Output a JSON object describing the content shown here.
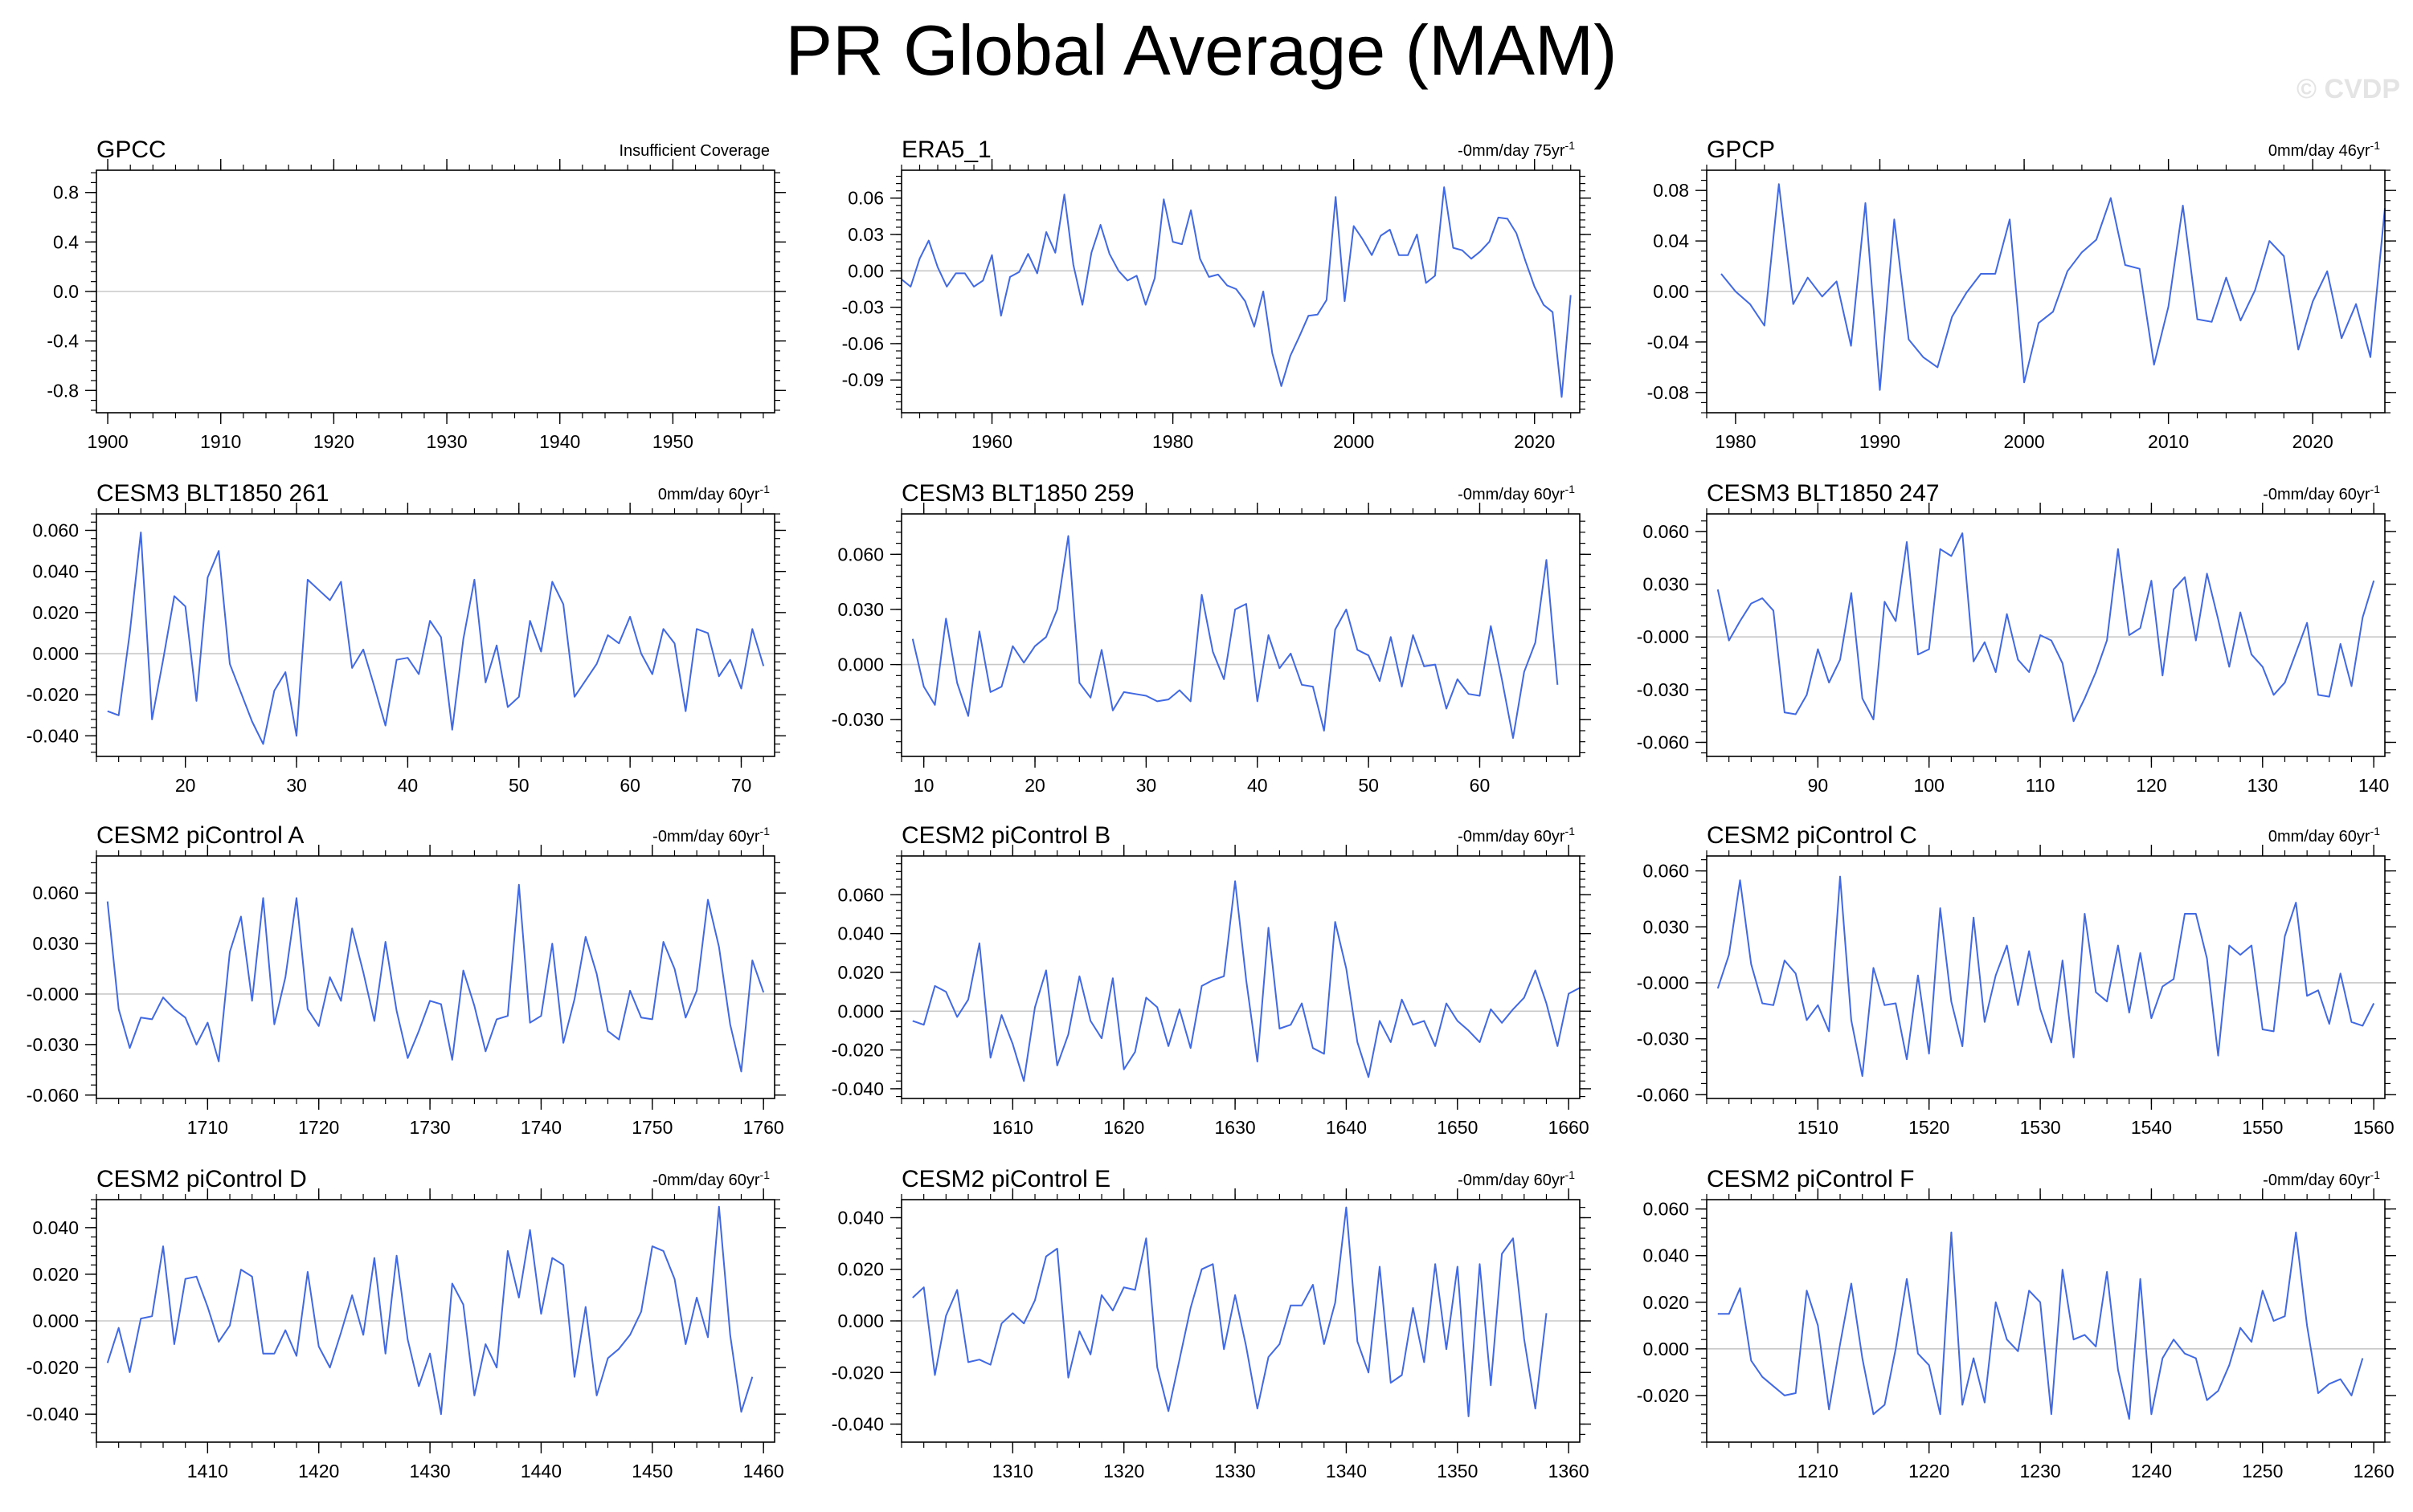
{
  "title": "PR Global Average (MAM)",
  "watermark": "© CVDP",
  "colors": {
    "line": "#4169e1",
    "zero": "#c8c8c8",
    "frame": "#000000"
  },
  "chart_data": [
    {
      "type": "line",
      "title": "GPCC",
      "stat": "Insufficient Coverage",
      "xlim": [
        1899,
        1959
      ],
      "ylim": [
        -0.98,
        0.98
      ],
      "xticks": [
        1900,
        1910,
        1920,
        1930,
        1940,
        1950
      ],
      "yticks": [
        -0.8,
        -0.4,
        0.0,
        0.4,
        0.8
      ],
      "ytick_labels": [
        "-0.8",
        "-0.4",
        "0.0",
        "0.4",
        "0.8"
      ],
      "x0": 1900,
      "values": []
    },
    {
      "type": "line",
      "title": "ERA5_1",
      "stat": "-0mm/day 75yr",
      "stat_sup": "-1",
      "xlim": [
        1950,
        2025
      ],
      "ylim": [
        -0.117,
        0.083
      ],
      "xticks": [
        1960,
        1980,
        2000,
        2020
      ],
      "yticks": [
        -0.09,
        -0.06,
        -0.03,
        0.0,
        0.03,
        0.06
      ],
      "ytick_labels": [
        "-0.09",
        "-0.06",
        "-0.03",
        "0.00",
        "0.03",
        "0.06"
      ],
      "x0": 1950,
      "values": [
        -0.007,
        -0.013,
        0.01,
        0.025,
        0.003,
        -0.013,
        -0.002,
        -0.002,
        -0.013,
        -0.008,
        0.013,
        -0.037,
        -0.005,
        -0.001,
        0.014,
        -0.002,
        0.032,
        0.015,
        0.063,
        0.005,
        -0.028,
        0.015,
        0.038,
        0.014,
        0.0,
        -0.008,
        -0.004,
        -0.028,
        -0.006,
        0.059,
        0.024,
        0.022,
        0.05,
        0.01,
        -0.005,
        -0.003,
        -0.012,
        -0.015,
        -0.025,
        -0.046,
        -0.017,
        -0.068,
        -0.095,
        -0.07,
        -0.054,
        -0.037,
        -0.036,
        -0.024,
        0.061,
        -0.025,
        0.037,
        0.026,
        0.013,
        0.029,
        0.034,
        0.013,
        0.013,
        0.03,
        -0.01,
        -0.004,
        0.069,
        0.019,
        0.017,
        0.01,
        0.016,
        0.024,
        0.044,
        0.043,
        0.031,
        0.008,
        -0.013,
        -0.028,
        -0.034,
        -0.104,
        -0.02
      ]
    },
    {
      "type": "line",
      "title": "GPCP",
      "stat": "0mm/day 46yr",
      "stat_sup": "-1",
      "xlim": [
        1978,
        2025
      ],
      "ylim": [
        -0.096,
        0.096
      ],
      "xticks": [
        1980,
        1990,
        2000,
        2010,
        2020
      ],
      "yticks": [
        -0.08,
        -0.04,
        0.0,
        0.04,
        0.08
      ],
      "ytick_labels": [
        "-0.08",
        "-0.04",
        "0.00",
        "0.04",
        "0.08"
      ],
      "x0": 1979,
      "values": [
        0.014,
        0.0,
        -0.01,
        -0.027,
        0.085,
        -0.01,
        0.011,
        -0.004,
        0.008,
        -0.043,
        0.07,
        -0.078,
        0.057,
        -0.038,
        -0.052,
        -0.06,
        -0.02,
        -0.001,
        0.014,
        0.014,
        0.057,
        -0.072,
        -0.025,
        -0.016,
        0.016,
        0.031,
        0.041,
        0.074,
        0.021,
        0.018,
        -0.058,
        -0.012,
        0.068,
        -0.022,
        -0.024,
        0.011,
        -0.023,
        0.001,
        0.04,
        0.028,
        -0.046,
        -0.008,
        0.016,
        -0.037,
        -0.01,
        -0.052,
        0.066
      ]
    },
    {
      "type": "line",
      "title": "CESM3 BLT1850 261",
      "stat": "0mm/day 60yr",
      "stat_sup": "-1",
      "xlim": [
        12,
        73
      ],
      "ylim": [
        -0.05,
        0.068
      ],
      "xticks": [
        20,
        30,
        40,
        50,
        60,
        70
      ],
      "yticks": [
        -0.04,
        -0.02,
        0.0,
        0.02,
        0.04,
        0.06
      ],
      "ytick_labels": [
        "-0.040",
        "-0.020",
        "0.000",
        "0.020",
        "0.040",
        "0.060"
      ],
      "x0": 13,
      "values": [
        -0.028,
        -0.03,
        0.01,
        0.059,
        -0.032,
        -0.003,
        0.028,
        0.023,
        -0.023,
        0.037,
        0.05,
        -0.005,
        -0.019,
        -0.033,
        -0.044,
        -0.018,
        -0.009,
        -0.04,
        0.036,
        0.031,
        0.026,
        0.035,
        -0.007,
        0.002,
        -0.016,
        -0.035,
        -0.003,
        -0.002,
        -0.01,
        0.016,
        0.008,
        -0.037,
        0.007,
        0.036,
        -0.014,
        0.004,
        -0.026,
        -0.021,
        0.016,
        0.001,
        0.035,
        0.024,
        -0.021,
        -0.013,
        -0.005,
        0.009,
        0.005,
        0.018,
        0.0,
        -0.01,
        0.012,
        0.005,
        -0.028,
        0.012,
        0.01,
        -0.011,
        -0.003,
        -0.017,
        0.012,
        -0.006
      ]
    },
    {
      "type": "line",
      "title": "CESM3 BLT1850 259",
      "stat": "-0mm/day 60yr",
      "stat_sup": "-1",
      "xlim": [
        8,
        69
      ],
      "ylim": [
        -0.05,
        0.082
      ],
      "xticks": [
        10,
        20,
        30,
        40,
        50,
        60
      ],
      "yticks": [
        -0.03,
        0.0,
        0.03,
        0.06
      ],
      "ytick_labels": [
        "-0.030",
        "0.000",
        "0.030",
        "0.060"
      ],
      "x0": 9,
      "values": [
        0.014,
        -0.012,
        -0.022,
        0.025,
        -0.01,
        -0.028,
        0.018,
        -0.015,
        -0.012,
        0.01,
        0.001,
        0.01,
        0.015,
        0.03,
        0.07,
        -0.01,
        -0.018,
        0.008,
        -0.025,
        -0.015,
        -0.016,
        -0.017,
        -0.02,
        -0.019,
        -0.014,
        -0.02,
        0.038,
        0.007,
        -0.008,
        0.03,
        0.033,
        -0.02,
        0.016,
        -0.002,
        0.006,
        -0.011,
        -0.012,
        -0.036,
        0.019,
        0.03,
        0.008,
        0.005,
        -0.009,
        0.015,
        -0.012,
        0.016,
        -0.001,
        0.0,
        -0.024,
        -0.008,
        -0.016,
        -0.017,
        0.021,
        -0.008,
        -0.04,
        -0.004,
        0.012,
        0.057,
        -0.011
      ]
    },
    {
      "type": "line",
      "title": "CESM3 BLT1850 247",
      "stat": "-0mm/day 60yr",
      "stat_sup": "-1",
      "xlim": [
        80,
        141
      ],
      "ylim": [
        -0.068,
        0.07
      ],
      "xticks": [
        90,
        100,
        110,
        120,
        130,
        140
      ],
      "yticks": [
        -0.06,
        -0.03,
        0.0,
        0.03,
        0.06
      ],
      "ytick_labels": [
        "-0.060",
        "-0.030",
        "-0.000",
        "0.030",
        "0.060"
      ],
      "x0": 81,
      "values": [
        0.027,
        -0.002,
        0.009,
        0.019,
        0.022,
        0.015,
        -0.043,
        -0.044,
        -0.033,
        -0.007,
        -0.026,
        -0.013,
        0.025,
        -0.035,
        -0.047,
        0.02,
        0.009,
        0.054,
        -0.01,
        -0.007,
        0.05,
        0.046,
        0.059,
        -0.014,
        -0.003,
        -0.02,
        0.013,
        -0.013,
        -0.02,
        0.001,
        -0.002,
        -0.015,
        -0.048,
        -0.035,
        -0.02,
        -0.002,
        0.05,
        0.001,
        0.005,
        0.032,
        -0.022,
        0.027,
        0.034,
        -0.002,
        0.036,
        0.01,
        -0.017,
        0.014,
        -0.01,
        -0.017,
        -0.033,
        -0.026,
        -0.009,
        0.008,
        -0.033,
        -0.034,
        -0.004,
        -0.028,
        0.011,
        0.032
      ]
    },
    {
      "type": "line",
      "title": "CESM2 piControl A",
      "stat": "-0mm/day 60yr",
      "stat_sup": "-1",
      "xlim": [
        1700,
        1761
      ],
      "ylim": [
        -0.062,
        0.082
      ],
      "xticks": [
        1710,
        1720,
        1730,
        1740,
        1750,
        1760
      ],
      "yticks": [
        -0.06,
        -0.03,
        0.0,
        0.03,
        0.06
      ],
      "ytick_labels": [
        "-0.060",
        "-0.030",
        "-0.000",
        "0.030",
        "0.060"
      ],
      "x0": 1701,
      "values": [
        0.055,
        -0.009,
        -0.032,
        -0.014,
        -0.015,
        -0.002,
        -0.009,
        -0.014,
        -0.03,
        -0.017,
        -0.04,
        0.025,
        0.046,
        -0.004,
        0.057,
        -0.018,
        0.01,
        0.057,
        -0.009,
        -0.019,
        0.01,
        -0.004,
        0.039,
        0.013,
        -0.016,
        0.031,
        -0.01,
        -0.038,
        -0.022,
        -0.004,
        -0.006,
        -0.039,
        0.014,
        -0.007,
        -0.034,
        -0.015,
        -0.013,
        0.065,
        -0.017,
        -0.013,
        0.03,
        -0.029,
        -0.003,
        0.034,
        0.012,
        -0.022,
        -0.027,
        0.002,
        -0.014,
        -0.015,
        0.031,
        0.015,
        -0.014,
        0.002,
        0.056,
        0.028,
        -0.018,
        -0.046,
        0.02,
        0.001
      ]
    },
    {
      "type": "line",
      "title": "CESM2 piControl B",
      "stat": "-0mm/day 60yr",
      "stat_sup": "-1",
      "xlim": [
        1600,
        1661
      ],
      "ylim": [
        -0.045,
        0.08
      ],
      "xticks": [
        1610,
        1620,
        1630,
        1640,
        1650,
        1660
      ],
      "yticks": [
        -0.04,
        -0.02,
        0.0,
        0.02,
        0.04,
        0.06
      ],
      "ytick_labels": [
        "-0.040",
        "-0.020",
        "0.000",
        "0.020",
        "0.040",
        "0.060"
      ],
      "x0": 1601,
      "values": [
        -0.005,
        -0.007,
        0.013,
        0.01,
        -0.003,
        0.006,
        0.035,
        -0.024,
        -0.002,
        -0.017,
        -0.036,
        0.002,
        0.021,
        -0.028,
        -0.012,
        0.018,
        -0.005,
        -0.014,
        0.017,
        -0.03,
        -0.021,
        0.007,
        0.002,
        -0.018,
        0.001,
        -0.019,
        0.013,
        0.016,
        0.018,
        0.067,
        0.016,
        -0.026,
        0.043,
        -0.009,
        -0.007,
        0.004,
        -0.019,
        -0.022,
        0.046,
        0.022,
        -0.016,
        -0.034,
        -0.005,
        -0.016,
        0.006,
        -0.007,
        -0.005,
        -0.018,
        0.004,
        -0.005,
        -0.01,
        -0.016,
        0.001,
        -0.006,
        0.001,
        0.007,
        0.021,
        0.004,
        -0.018,
        0.009,
        0.012
      ]
    },
    {
      "type": "line",
      "title": "CESM2 piControl C",
      "stat": "0mm/day 60yr",
      "stat_sup": "-1",
      "xlim": [
        1500,
        1561
      ],
      "ylim": [
        -0.062,
        0.068
      ],
      "xticks": [
        1510,
        1520,
        1530,
        1540,
        1550,
        1560
      ],
      "yticks": [
        -0.06,
        -0.03,
        0.0,
        0.03,
        0.06
      ],
      "ytick_labels": [
        "-0.060",
        "-0.030",
        "-0.000",
        "0.030",
        "0.060"
      ],
      "x0": 1501,
      "values": [
        -0.003,
        0.015,
        0.055,
        0.01,
        -0.011,
        -0.012,
        0.012,
        0.005,
        -0.02,
        -0.012,
        -0.026,
        0.057,
        -0.02,
        -0.05,
        0.008,
        -0.012,
        -0.011,
        -0.041,
        0.004,
        -0.038,
        0.04,
        -0.01,
        -0.034,
        0.035,
        -0.021,
        0.004,
        0.02,
        -0.012,
        0.017,
        -0.014,
        -0.032,
        0.012,
        -0.04,
        0.037,
        -0.005,
        -0.01,
        0.02,
        -0.016,
        0.016,
        -0.019,
        -0.002,
        0.002,
        0.037,
        0.037,
        0.013,
        -0.039,
        0.02,
        0.015,
        0.02,
        -0.025,
        -0.026,
        0.025,
        0.043,
        -0.007,
        -0.004,
        -0.022,
        0.005,
        -0.021,
        -0.023,
        -0.011
      ]
    },
    {
      "type": "line",
      "title": "CESM2 piControl D",
      "stat": "-0mm/day 60yr",
      "stat_sup": "-1",
      "xlim": [
        1400,
        1461
      ],
      "ylim": [
        -0.052,
        0.052
      ],
      "xticks": [
        1410,
        1420,
        1430,
        1440,
        1450,
        1460
      ],
      "yticks": [
        -0.04,
        -0.02,
        0.0,
        0.02,
        0.04
      ],
      "ytick_labels": [
        "-0.040",
        "-0.020",
        "0.000",
        "0.020",
        "0.040"
      ],
      "x0": 1401,
      "values": [
        -0.018,
        -0.003,
        -0.022,
        0.001,
        0.002,
        0.032,
        -0.01,
        0.018,
        0.019,
        0.006,
        -0.009,
        -0.002,
        0.022,
        0.019,
        -0.014,
        -0.014,
        -0.004,
        -0.015,
        0.021,
        -0.011,
        -0.02,
        -0.005,
        0.011,
        -0.006,
        0.027,
        -0.014,
        0.028,
        -0.008,
        -0.028,
        -0.014,
        -0.04,
        0.016,
        0.007,
        -0.032,
        -0.01,
        -0.02,
        0.03,
        0.01,
        0.039,
        0.003,
        0.027,
        0.024,
        -0.024,
        0.006,
        -0.032,
        -0.016,
        -0.012,
        -0.006,
        0.004,
        0.032,
        0.03,
        0.018,
        -0.01,
        0.01,
        -0.007,
        0.049,
        -0.006,
        -0.039,
        -0.024
      ]
    },
    {
      "type": "line",
      "title": "CESM2 piControl E",
      "stat": "-0mm/day 60yr",
      "stat_sup": "-1",
      "xlim": [
        1300,
        1361
      ],
      "ylim": [
        -0.047,
        0.047
      ],
      "xticks": [
        1310,
        1320,
        1330,
        1340,
        1350,
        1360
      ],
      "yticks": [
        -0.04,
        -0.02,
        0.0,
        0.02,
        0.04
      ],
      "ytick_labels": [
        "-0.040",
        "-0.020",
        "0.000",
        "0.020",
        "0.040"
      ],
      "x0": 1301,
      "values": [
        0.009,
        0.013,
        -0.021,
        0.002,
        0.012,
        -0.016,
        -0.015,
        -0.017,
        -0.001,
        0.003,
        -0.001,
        0.008,
        0.025,
        0.028,
        -0.022,
        -0.004,
        -0.013,
        0.01,
        0.004,
        0.013,
        0.012,
        0.032,
        -0.018,
        -0.035,
        -0.015,
        0.005,
        0.02,
        0.022,
        -0.011,
        0.01,
        -0.01,
        -0.034,
        -0.014,
        -0.009,
        0.006,
        0.006,
        0.014,
        -0.009,
        0.007,
        0.044,
        -0.008,
        -0.02,
        0.021,
        -0.024,
        -0.021,
        0.005,
        -0.016,
        0.022,
        -0.011,
        0.021,
        -0.037,
        0.022,
        -0.025,
        0.026,
        0.032,
        -0.007,
        -0.034,
        0.003
      ]
    },
    {
      "type": "line",
      "title": "CESM2 piControl F",
      "stat": "-0mm/day 60yr",
      "stat_sup": "-1",
      "xlim": [
        1200,
        1261
      ],
      "ylim": [
        -0.04,
        0.064
      ],
      "xticks": [
        1210,
        1220,
        1230,
        1240,
        1250,
        1260
      ],
      "yticks": [
        -0.02,
        0.0,
        0.02,
        0.04,
        0.06
      ],
      "ytick_labels": [
        "-0.020",
        "0.000",
        "0.020",
        "0.040",
        "0.060"
      ],
      "x0": 1201,
      "values": [
        0.015,
        0.015,
        0.026,
        -0.005,
        -0.012,
        -0.016,
        -0.02,
        -0.019,
        0.025,
        0.01,
        -0.026,
        0.002,
        0.028,
        -0.004,
        -0.028,
        -0.024,
        0.0,
        0.03,
        -0.002,
        -0.007,
        -0.028,
        0.05,
        -0.024,
        -0.004,
        -0.023,
        0.02,
        0.004,
        -0.001,
        0.025,
        0.02,
        -0.028,
        0.034,
        0.004,
        0.006,
        0.001,
        0.033,
        -0.009,
        -0.03,
        0.03,
        -0.028,
        -0.004,
        0.004,
        -0.002,
        -0.004,
        -0.022,
        -0.018,
        -0.007,
        0.009,
        0.003,
        0.025,
        0.012,
        0.014,
        0.05,
        0.01,
        -0.019,
        -0.015,
        -0.013,
        -0.02,
        -0.004
      ]
    }
  ]
}
